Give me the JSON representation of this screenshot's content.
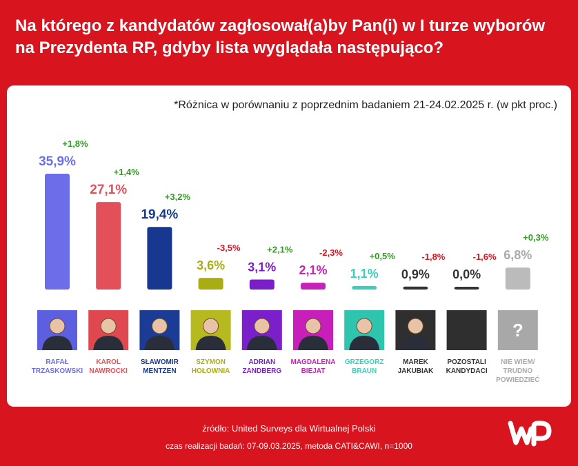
{
  "header": {
    "title": "Na którego z kandydatów zagłosował(a)by Pan(i) w I turze wyborów na Prezydenta RP, gdyby lista wyglądała następująco?"
  },
  "note": "*Różnica w porównaniu z poprzednim badaniem 21-24.02.2025 r. (w pkt proc.)",
  "chart_data": {
    "type": "bar",
    "categories": [
      "RAFAŁ TRZASKOWSKI",
      "KAROL NAWROCKI",
      "SŁAWOMIR MENTZEN",
      "SZYMON HOŁOWNIA",
      "ADRIAN ZANDBERG",
      "MAGDALENA BIEJAT",
      "GRZEGORZ BRAUN",
      "MAREK JAKUBIAK",
      "POZOSTALI KANDYDACI",
      "NIE WIEM/ TRUDNO POWIEDZIEĆ"
    ],
    "name_lines": [
      [
        "RAFAŁ",
        "TRZASKOWSKI"
      ],
      [
        "KAROL",
        "NAWROCKI"
      ],
      [
        "SŁAWOMIR",
        "MENTZEN"
      ],
      [
        "SZYMON",
        "HOŁOWNIA"
      ],
      [
        "ADRIAN",
        "ZANDBERG"
      ],
      [
        "MAGDALENA",
        "BIEJAT"
      ],
      [
        "GRZEGORZ",
        "BRAUN"
      ],
      [
        "MAREK",
        "JAKUBIAK"
      ],
      [
        "POZOSTALI",
        "KANDYDACI"
      ],
      [
        "NIE WIEM/",
        "TRUDNO",
        "POWIEDZIEĆ"
      ]
    ],
    "values": [
      35.9,
      27.1,
      19.4,
      3.6,
      3.1,
      2.1,
      1.1,
      0.9,
      0.0,
      6.8
    ],
    "value_labels": [
      "35,9%",
      "27,1%",
      "19,4%",
      "3,6%",
      "3,1%",
      "2,1%",
      "1,1%",
      "0,9%",
      "0,0%",
      "6,8%"
    ],
    "changes": [
      1.8,
      1.4,
      3.2,
      -3.5,
      2.1,
      -2.3,
      0.5,
      -1.8,
      -1.6,
      0.3
    ],
    "change_labels": [
      "+1,8%",
      "+1,4%",
      "+3,2%",
      "-3,5%",
      "+2,1%",
      "-2,3%",
      "+0,5%",
      "-1,8%",
      "-1,6%",
      "+0,3%"
    ],
    "colors": [
      "#6b6ee8",
      "#e4505a",
      "#18388f",
      "#a9ad12",
      "#7a1fc8",
      "#c623b8",
      "#3ccfb8",
      "#333333",
      "#333333",
      "#bbbbbb"
    ],
    "label_colors": [
      "#6b6ee8",
      "#e4505a",
      "#18388f",
      "#a9ad12",
      "#7a1fc8",
      "#c623b8",
      "#3ccfb8",
      "#333333",
      "#333333",
      "#aaaaaa"
    ],
    "positive_color": "#2e9e1c",
    "negative_color": "#d8141f",
    "photo_backgrounds": [
      "#5b5fe0",
      "#e0484f",
      "#1a3c95",
      "#b6ba1e",
      "#7b1fca",
      "#c81fba",
      "#2fc4ad",
      "#2f2f2f",
      "#2f2f2f",
      "#a8a8a8"
    ],
    "xlabel": "",
    "ylabel": ""
  },
  "footer": {
    "source": "źródło: United Surveys dla Wirtualnej Polski",
    "method": "czas realizacji badań: 07-09.03.2025, metoda CATI&CAWI, n=1000",
    "logo_text": "WP"
  }
}
